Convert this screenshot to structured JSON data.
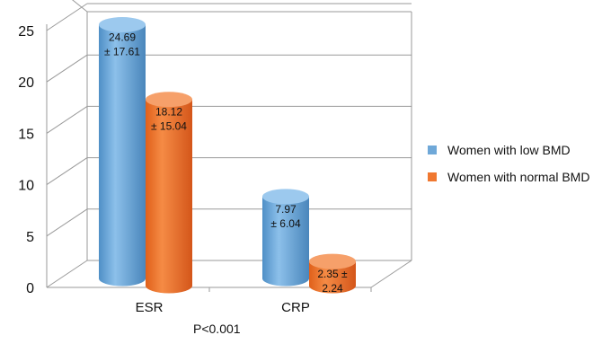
{
  "chart_data": {
    "type": "bar",
    "categories": [
      "ESR",
      "CRP"
    ],
    "series": [
      {
        "name": "Women with low BMD",
        "values": [
          24.69,
          7.97
        ],
        "labels": [
          [
            "24.69",
            "± 17.61"
          ],
          [
            "7.97",
            "± 6.04"
          ]
        ],
        "color": "#6fa8d8"
      },
      {
        "name": "Women with normal BMD",
        "values": [
          18.12,
          2.35
        ],
        "labels": [
          [
            "18.12",
            "± 15.04"
          ],
          [
            "2.35 ±",
            "2.24"
          ]
        ],
        "color": "#f07830"
      }
    ],
    "yticks": [
      "0",
      "5",
      "10",
      "15",
      "20",
      "25"
    ],
    "ylim": [
      0,
      30
    ],
    "grid": true,
    "legend_position": "right",
    "annotation": "P<0.001"
  }
}
